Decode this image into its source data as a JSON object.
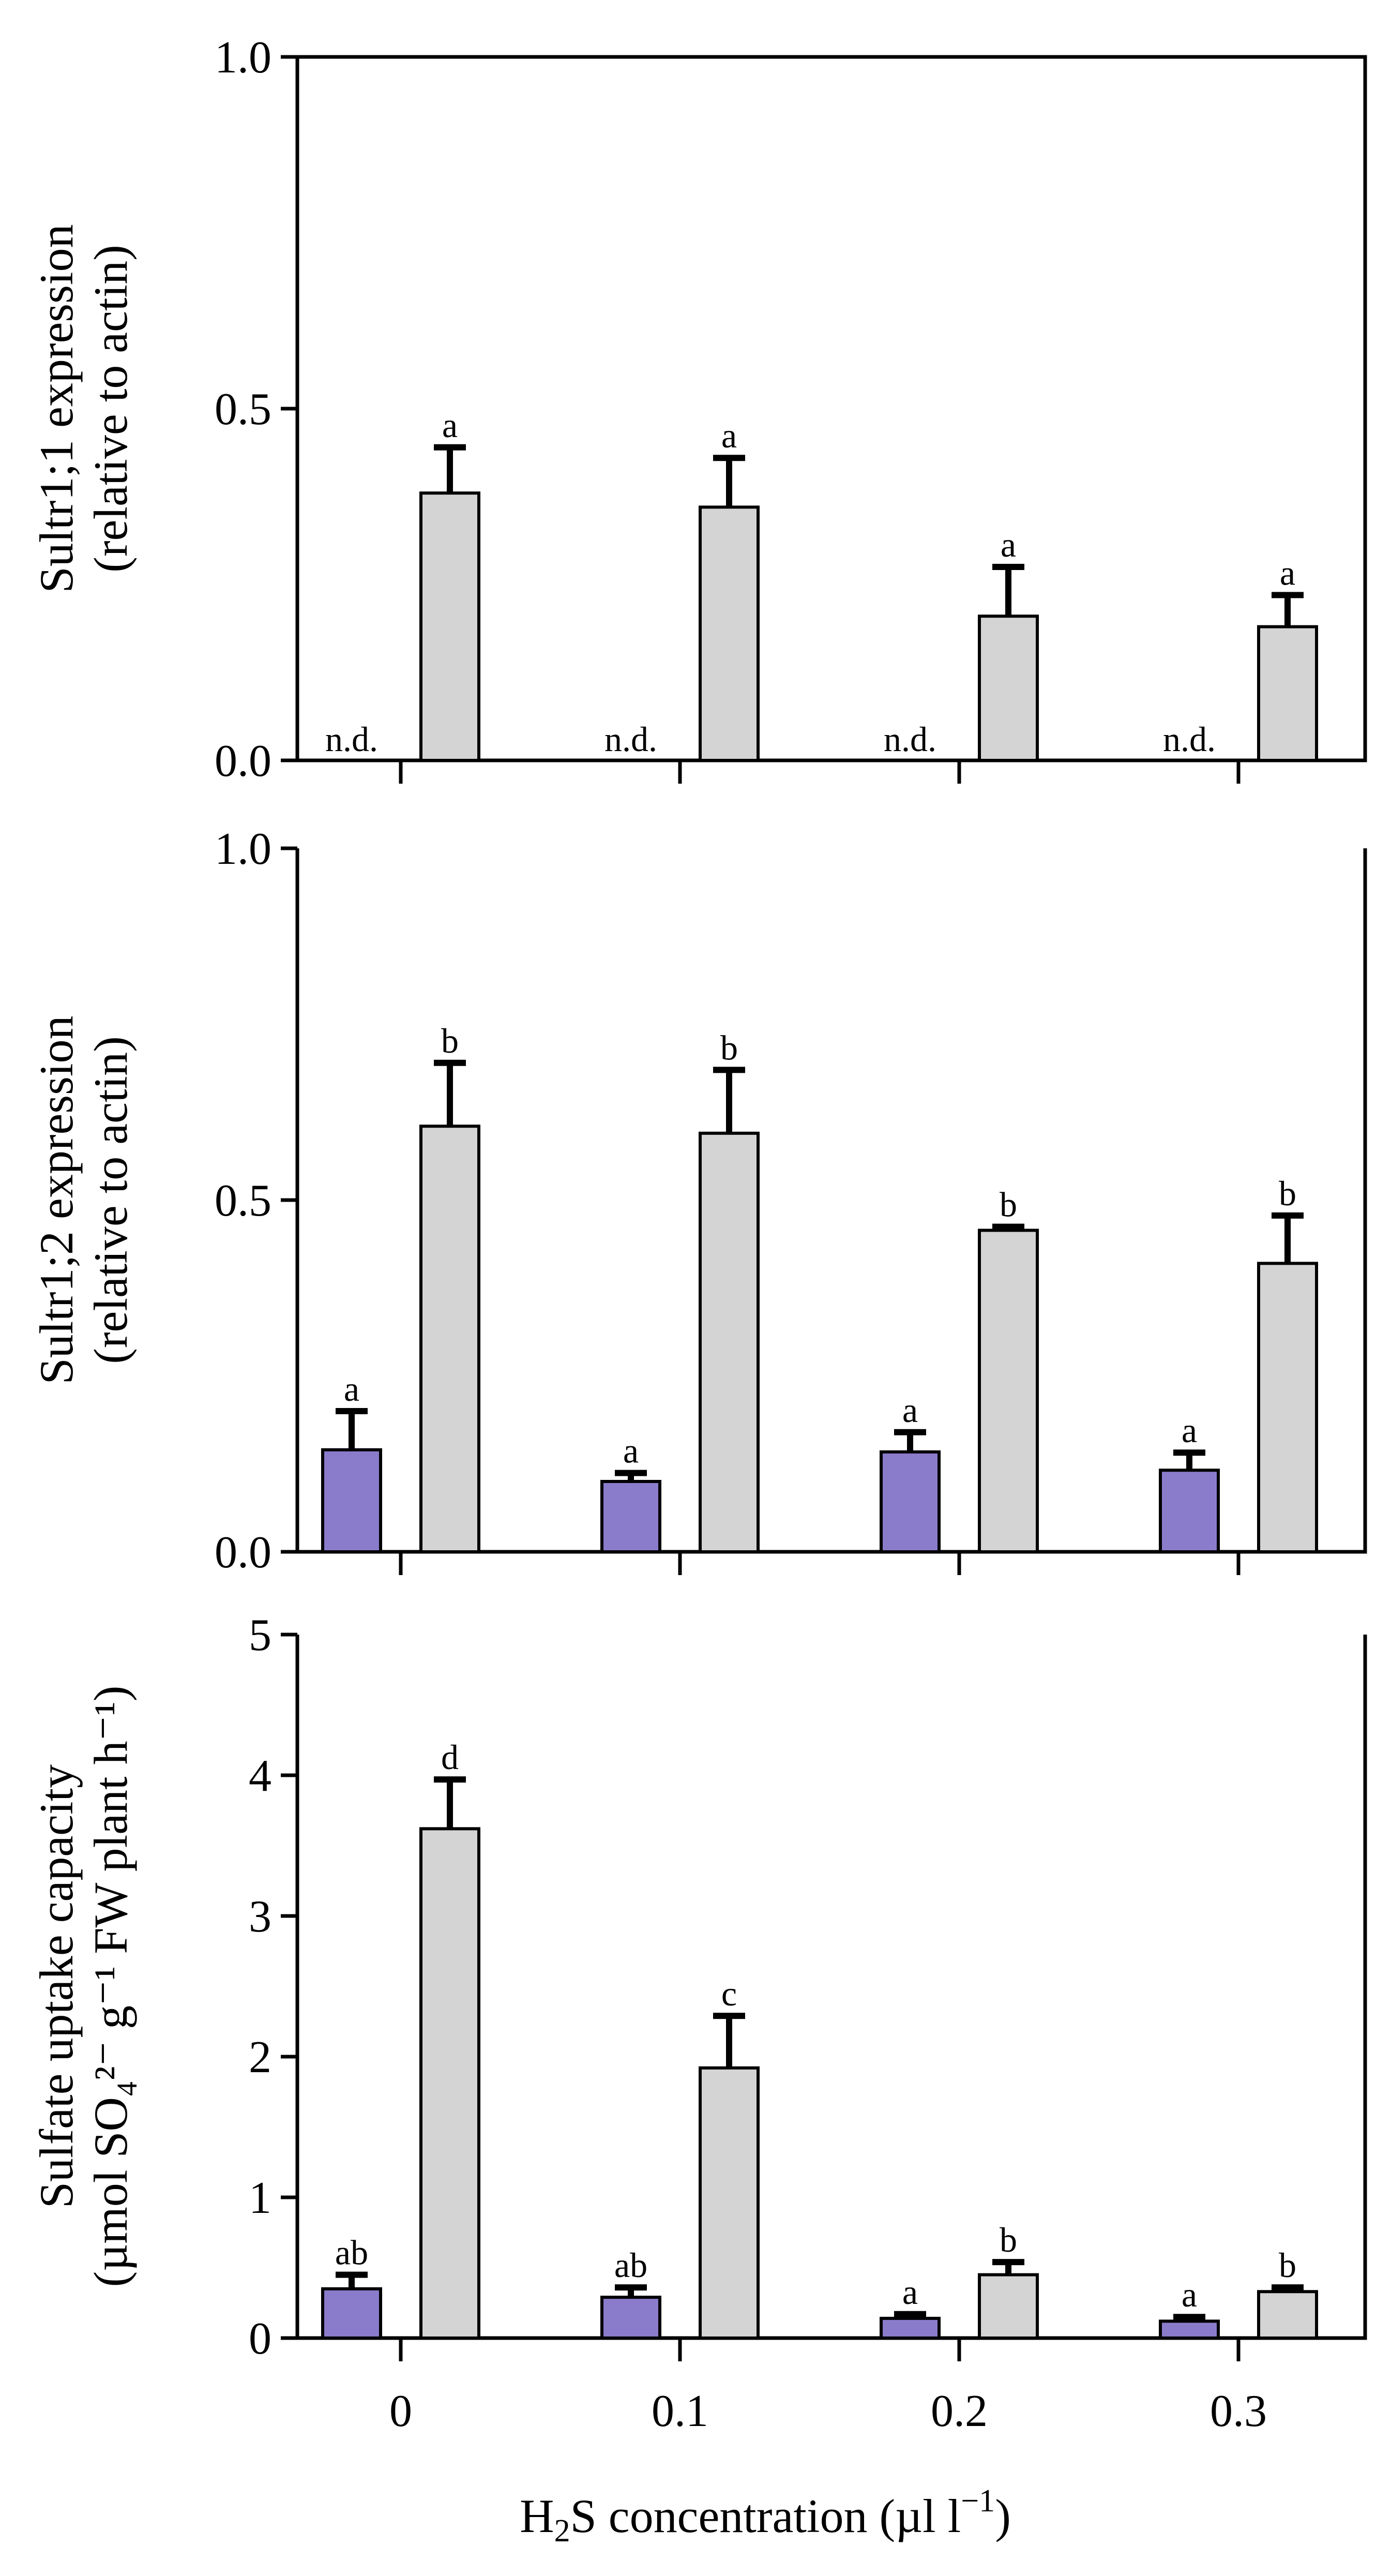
{
  "colors": {
    "purple": "#8b7bcb",
    "gray": "#d4d4d4",
    "stroke": "#000000"
  },
  "xlabel": {
    "base": "H",
    "sub": "2",
    "rest": "S concentration (µl l",
    "sup": "−1",
    "close": ")"
  },
  "chart_data": [
    {
      "type": "bar",
      "panel": "top",
      "categories": [
        "0",
        "0.1",
        "0.2",
        "0.3"
      ],
      "ylim": [
        0,
        1
      ],
      "yticks": [
        "0.0",
        "0.5",
        "1.0"
      ],
      "yticks_values": [
        0,
        0.5,
        1.0
      ],
      "ylabel_lines": [
        "Sultr1;1 expression",
        "(relative to actin)"
      ],
      "show_xtick_labels": false,
      "series": [
        {
          "name": "purple",
          "values": [
            null,
            null,
            null,
            null
          ],
          "errors": [
            null,
            null,
            null,
            null
          ],
          "labels": [
            "n.d.",
            "n.d.",
            "n.d.",
            "n.d."
          ]
        },
        {
          "name": "gray",
          "values": [
            0.38,
            0.36,
            0.205,
            0.19
          ],
          "errors": [
            0.065,
            0.07,
            0.07,
            0.045
          ],
          "labels": [
            "a",
            "a",
            "a",
            "a"
          ]
        }
      ]
    },
    {
      "type": "bar",
      "panel": "middle",
      "categories": [
        "0",
        "0.1",
        "0.2",
        "0.3"
      ],
      "ylim": [
        0,
        1
      ],
      "yticks": [
        "0.0",
        "0.5",
        "1.0"
      ],
      "yticks_values": [
        0,
        0.5,
        1.0
      ],
      "ylabel_lines": [
        "Sultr1;2 expression",
        "(relative to actin)"
      ],
      "show_xtick_labels": false,
      "series": [
        {
          "name": "purple",
          "values": [
            0.145,
            0.1,
            0.142,
            0.116
          ],
          "errors": [
            0.055,
            0.012,
            0.028,
            0.025
          ],
          "labels": [
            "a",
            "a",
            "a",
            "a"
          ]
        },
        {
          "name": "gray",
          "values": [
            0.605,
            0.595,
            0.457,
            0.41
          ],
          "errors": [
            0.09,
            0.09,
            0.005,
            0.068
          ],
          "labels": [
            "b",
            "b",
            "b",
            "b"
          ]
        }
      ]
    },
    {
      "type": "bar",
      "panel": "bottom",
      "categories": [
        "0",
        "0.1",
        "0.2",
        "0.3"
      ],
      "ylim": [
        0,
        5
      ],
      "yticks": [
        "0",
        "1",
        "2",
        "3",
        "4",
        "5"
      ],
      "yticks_values": [
        0,
        1,
        2,
        3,
        4,
        5
      ],
      "ylabel_lines": [
        "Sulfate uptake capacity",
        "(µmol SO₄²⁻ g⁻¹ FW plant h⁻¹)"
      ],
      "show_xtick_labels": true,
      "series": [
        {
          "name": "purple",
          "values": [
            0.35,
            0.29,
            0.14,
            0.12
          ],
          "errors": [
            0.1,
            0.07,
            0.03,
            0.03
          ],
          "labels": [
            "ab",
            "ab",
            "a",
            "a"
          ]
        },
        {
          "name": "gray",
          "values": [
            3.62,
            1.92,
            0.45,
            0.33
          ],
          "errors": [
            0.35,
            0.37,
            0.09,
            0.03
          ],
          "labels": [
            "d",
            "c",
            "b",
            "b"
          ]
        }
      ]
    }
  ]
}
